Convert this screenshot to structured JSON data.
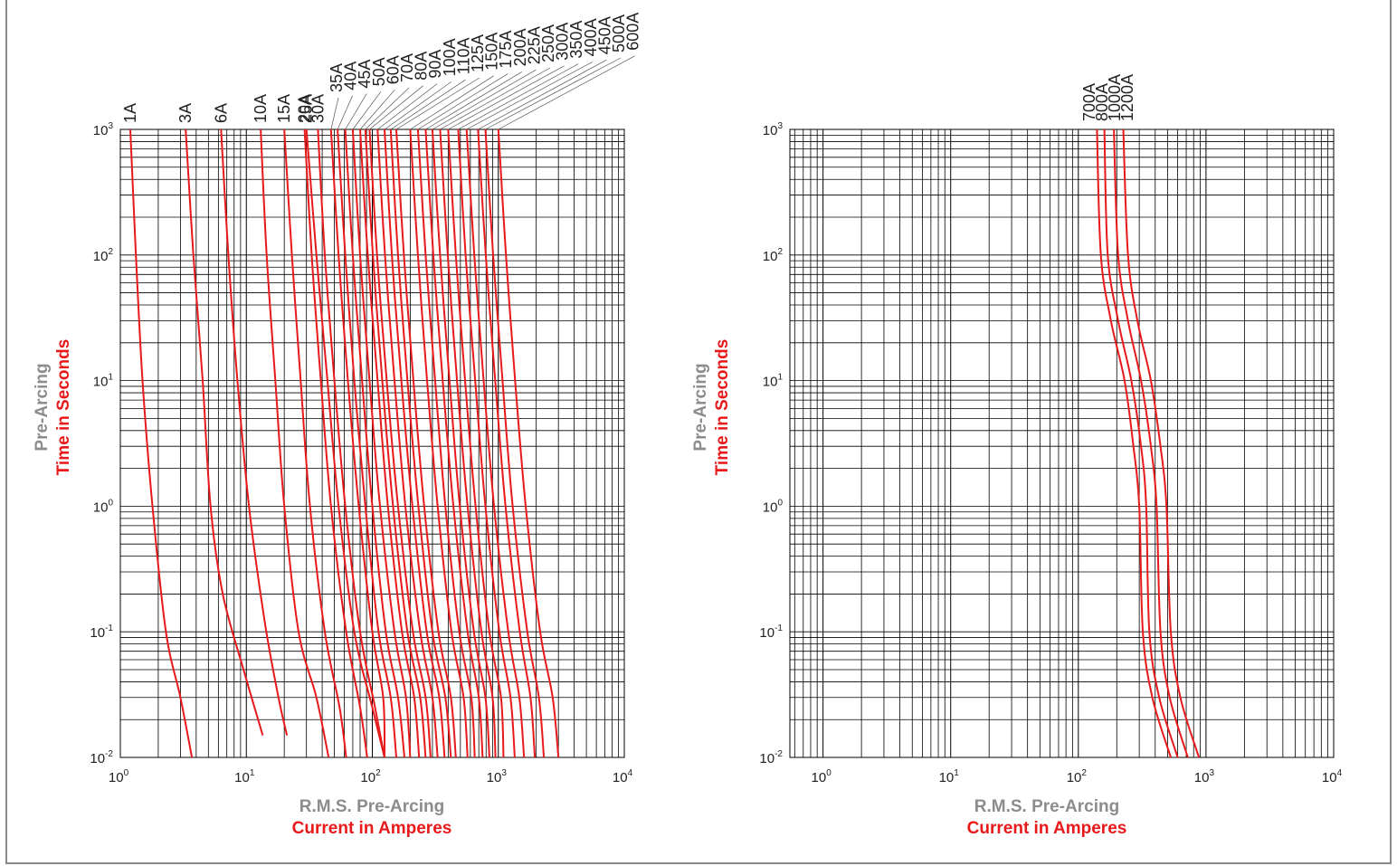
{
  "colors": {
    "curve": "#e8191b",
    "axis_title_top": "#8c8c8c",
    "axis_title_bottom": "#e8191b",
    "grid": "#000000",
    "frame": "#8a8a8a"
  },
  "chart_data": [
    {
      "type": "line",
      "log_x": true,
      "log_y": true,
      "xlim": [
        1,
        10000
      ],
      "ylim": [
        0.01,
        1000
      ],
      "x_ticks": [
        {
          "b": "10",
          "e": "0"
        },
        {
          "b": "10",
          "e": "1"
        },
        {
          "b": "10",
          "e": "2"
        },
        {
          "b": "10",
          "e": "3"
        },
        {
          "b": "10",
          "e": "4"
        }
      ],
      "y_ticks": [
        {
          "b": "10",
          "e": "3"
        },
        {
          "b": "10",
          "e": "2"
        },
        {
          "b": "10",
          "e": "1"
        },
        {
          "b": "10",
          "e": "0"
        },
        {
          "b": "10",
          "e": "-1"
        },
        {
          "b": "10",
          "e": "-2"
        }
      ],
      "xlabel_line1": "R.M.S. Pre-Arcing",
      "xlabel_line2": "Current in Amperes",
      "ylabel_line1": "Pre-Arcing",
      "ylabel_line2": "Time in Seconds",
      "series": [
        {
          "name": "1A",
          "x": [
            1.2,
            1.33,
            1.5,
            1.8,
            2.3,
            3.0,
            3.7
          ],
          "y": [
            1000,
            100,
            10,
            1,
            0.1,
            0.03,
            0.01
          ]
        },
        {
          "name": "3A",
          "x": [
            3.3,
            3.8,
            4.5,
            5.2,
            6.5,
            9.5,
            13.5
          ],
          "y": [
            1000,
            100,
            10,
            1,
            0.2,
            0.05,
            0.015
          ]
        },
        {
          "name": "6A",
          "x": [
            6.3,
            7.2,
            8.5,
            10.5,
            14,
            18,
            21
          ],
          "y": [
            1000,
            100,
            10,
            1,
            0.12,
            0.03,
            0.015
          ]
        },
        {
          "name": "10A",
          "x": [
            13,
            14.5,
            17,
            20,
            26,
            36,
            45
          ],
          "y": [
            1000,
            100,
            10,
            1,
            0.1,
            0.03,
            0.01
          ]
        },
        {
          "name": "15A",
          "x": [
            20,
            23,
            27,
            32,
            42,
            55,
            62
          ],
          "y": [
            1000,
            100,
            10,
            1,
            0.1,
            0.025,
            0.01
          ]
        },
        {
          "name": "20A",
          "x": [
            29,
            33,
            39,
            47,
            62,
            80,
            91
          ],
          "y": [
            1000,
            100,
            10,
            1,
            0.1,
            0.025,
            0.01
          ]
        },
        {
          "name": "25A",
          "x": [
            30,
            36,
            44,
            54,
            72,
            100,
            125
          ],
          "y": [
            1000,
            100,
            10,
            1,
            0.1,
            0.025,
            0.01
          ]
        },
        {
          "name": "30A",
          "x": [
            37,
            42,
            50,
            61,
            80,
            105,
            125
          ],
          "y": [
            1000,
            100,
            10,
            1,
            0.1,
            0.025,
            0.01
          ]
        },
        {
          "name": "35A",
          "x": [
            47,
            54,
            64,
            78,
            100,
            122,
            125
          ],
          "y": [
            1000,
            100,
            10,
            1,
            0.1,
            0.03,
            0.01
          ]
        },
        {
          "name": "40A",
          "x": [
            53,
            61,
            72,
            88,
            112,
            140,
            155
          ],
          "y": [
            1000,
            100,
            10,
            1,
            0.1,
            0.03,
            0.01
          ]
        },
        {
          "name": "45A",
          "x": [
            61,
            70,
            83,
            100,
            128,
            160,
            180
          ],
          "y": [
            1000,
            100,
            10,
            1,
            0.1,
            0.03,
            0.01
          ]
        },
        {
          "name": "50A",
          "x": [
            70,
            80,
            95,
            115,
            150,
            185,
            200
          ],
          "y": [
            1000,
            100,
            10,
            1,
            0.1,
            0.03,
            0.01
          ]
        },
        {
          "name": "60A",
          "x": [
            80,
            92,
            110,
            133,
            172,
            215,
            235
          ],
          "y": [
            1000,
            100,
            10,
            1,
            0.1,
            0.03,
            0.01
          ]
        },
        {
          "name": "70A",
          "x": [
            88,
            101,
            120,
            146,
            190,
            240,
            265
          ],
          "y": [
            1000,
            100,
            10,
            1,
            0.1,
            0.03,
            0.01
          ]
        },
        {
          "name": "80A",
          "x": [
            95,
            109,
            130,
            160,
            210,
            265,
            290
          ],
          "y": [
            1000,
            100,
            10,
            1,
            0.1,
            0.03,
            0.01
          ]
        },
        {
          "name": "90A",
          "x": [
            110,
            126,
            150,
            183,
            240,
            300,
            330
          ],
          "y": [
            1000,
            100,
            10,
            1,
            0.1,
            0.03,
            0.01
          ]
        },
        {
          "name": "100A",
          "x": [
            125,
            143,
            170,
            208,
            270,
            340,
            375
          ],
          "y": [
            1000,
            100,
            10,
            1,
            0.1,
            0.03,
            0.01
          ]
        },
        {
          "name": "110A",
          "x": [
            140,
            160,
            190,
            232,
            300,
            380,
            420
          ],
          "y": [
            1000,
            100,
            10,
            1,
            0.1,
            0.03,
            0.01
          ]
        },
        {
          "name": "125A",
          "x": [
            155,
            178,
            212,
            258,
            335,
            420,
            460
          ],
          "y": [
            1000,
            100,
            10,
            1,
            0.1,
            0.03,
            0.01
          ]
        },
        {
          "name": "150A",
          "x": [
            200,
            230,
            272,
            330,
            425,
            530,
            570
          ],
          "y": [
            1000,
            100,
            10,
            1,
            0.1,
            0.03,
            0.01
          ]
        },
        {
          "name": "175A",
          "x": [
            230,
            265,
            315,
            380,
            490,
            610,
            650
          ],
          "y": [
            1000,
            100,
            10,
            1,
            0.1,
            0.03,
            0.01
          ]
        },
        {
          "name": "200A",
          "x": [
            265,
            305,
            362,
            440,
            570,
            700,
            750
          ],
          "y": [
            1000,
            100,
            10,
            1,
            0.1,
            0.03,
            0.01
          ]
        },
        {
          "name": "225A",
          "x": [
            300,
            345,
            410,
            495,
            640,
            790,
            850
          ],
          "y": [
            1000,
            100,
            10,
            1,
            0.1,
            0.03,
            0.01
          ]
        },
        {
          "name": "250A",
          "x": [
            345,
            397,
            470,
            570,
            735,
            900,
            950
          ],
          "y": [
            1000,
            100,
            10,
            1,
            0.1,
            0.03,
            0.01
          ]
        },
        {
          "name": "300A",
          "x": [
            400,
            460,
            545,
            660,
            850,
            1050,
            1100
          ],
          "y": [
            1000,
            100,
            10,
            1,
            0.1,
            0.03,
            0.01
          ]
        },
        {
          "name": "350A",
          "x": [
            480,
            550,
            655,
            790,
            1020,
            1250,
            1350
          ],
          "y": [
            1000,
            100,
            10,
            1,
            0.1,
            0.03,
            0.01
          ]
        },
        {
          "name": "400A",
          "x": [
            560,
            645,
            765,
            925,
            1200,
            1470,
            1600
          ],
          "y": [
            1000,
            100,
            10,
            1,
            0.1,
            0.03,
            0.01
          ]
        },
        {
          "name": "450A",
          "x": [
            690,
            795,
            945,
            1140,
            1480,
            1800,
            1950
          ],
          "y": [
            1000,
            100,
            10,
            1,
            0.1,
            0.03,
            0.01
          ]
        },
        {
          "name": "500A",
          "x": [
            790,
            910,
            1080,
            1300,
            1700,
            2100,
            2300
          ],
          "y": [
            1000,
            100,
            10,
            1,
            0.1,
            0.03,
            0.01
          ]
        },
        {
          "name": "600A",
          "x": [
            1000,
            1150,
            1360,
            1650,
            2150,
            2700,
            3000
          ],
          "y": [
            1000,
            100,
            10,
            1,
            0.1,
            0.03,
            0.01
          ]
        }
      ]
    },
    {
      "type": "line",
      "log_x": true,
      "log_y": true,
      "xlim": [
        0.55,
        10000
      ],
      "ylim": [
        0.01,
        1000
      ],
      "x_ticks": [
        {
          "b": "10",
          "e": "0"
        },
        {
          "b": "10",
          "e": "1"
        },
        {
          "b": "10",
          "e": "2"
        },
        {
          "b": "10",
          "e": "3"
        },
        {
          "b": "10",
          "e": "4"
        }
      ],
      "y_ticks": [
        {
          "b": "10",
          "e": "3"
        },
        {
          "b": "10",
          "e": "2"
        },
        {
          "b": "10",
          "e": "1"
        },
        {
          "b": "10",
          "e": "0"
        },
        {
          "b": "10",
          "e": "-1"
        },
        {
          "b": "10",
          "e": "-2"
        }
      ],
      "xlabel_line1": "R.M.S. Pre-Arcing",
      "xlabel_line2": "Current in Amperes",
      "ylabel_line1": "Pre-Arcing",
      "ylabel_line2": "Time in Seconds",
      "series": [
        {
          "name": "700A",
          "x": [
            140,
            150,
            180,
            230,
            270,
            300,
            320,
            380,
            530
          ],
          "y": [
            1000,
            100,
            30,
            10,
            3,
            1,
            0.1,
            0.03,
            0.01
          ]
        },
        {
          "name": "800A",
          "x": [
            160,
            170,
            205,
            260,
            310,
            340,
            360,
            430,
            600
          ],
          "y": [
            1000,
            100,
            30,
            10,
            3,
            1,
            0.1,
            0.03,
            0.01
          ]
        },
        {
          "name": "1000A",
          "x": [
            190,
            205,
            245,
            310,
            370,
            410,
            440,
            520,
            720
          ],
          "y": [
            1000,
            100,
            30,
            10,
            3,
            1,
            0.1,
            0.03,
            0.01
          ]
        },
        {
          "name": "1200A",
          "x": [
            225,
            245,
            290,
            370,
            440,
            490,
            530,
            630,
            880
          ],
          "y": [
            1000,
            100,
            30,
            10,
            3,
            1,
            0.1,
            0.03,
            0.01
          ]
        }
      ]
    }
  ]
}
